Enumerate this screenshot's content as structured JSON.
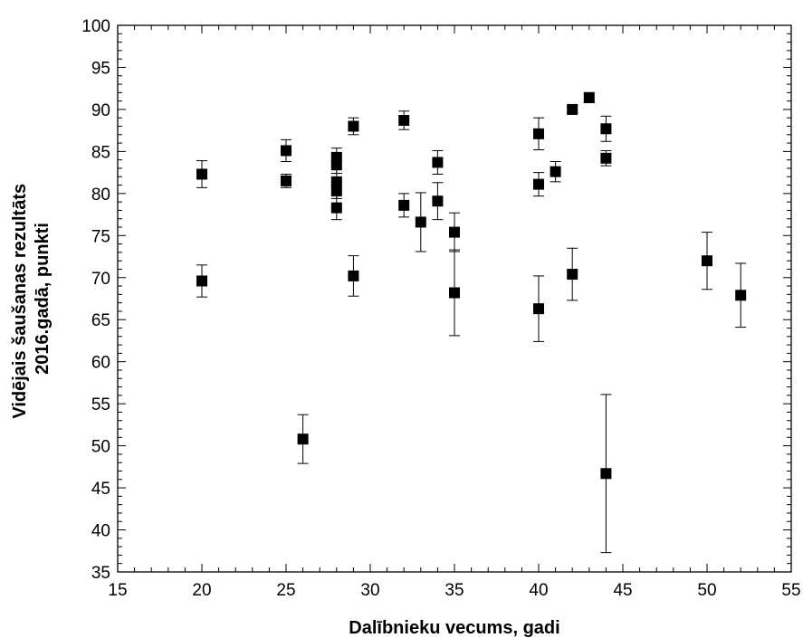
{
  "chart_data": {
    "type": "scatter",
    "xlabel": "Dalībnieku vecums, gadi",
    "ylabel_lines": [
      "Vidējais šaušanas rezultāts",
      "2016.gadā, punkti"
    ],
    "xlim": [
      15,
      55
    ],
    "ylim": [
      35,
      100
    ],
    "x_ticks": [
      15,
      20,
      25,
      30,
      35,
      40,
      45,
      50,
      55
    ],
    "y_ticks": [
      35,
      40,
      45,
      50,
      55,
      60,
      65,
      70,
      75,
      80,
      85,
      90,
      95,
      100
    ],
    "x_minor_step": 1,
    "y_minor_step": 1,
    "grid": false,
    "legend": "none",
    "marker": "square",
    "marker_color": "#000000",
    "points": [
      {
        "x": 20,
        "y": 82.3,
        "err": 1.6
      },
      {
        "x": 20,
        "y": 69.6,
        "err": 1.9
      },
      {
        "x": 25,
        "y": 85.1,
        "err": 1.3
      },
      {
        "x": 25,
        "y": 81.5,
        "err": 0.8
      },
      {
        "x": 26,
        "y": 50.8,
        "err": 2.9
      },
      {
        "x": 28,
        "y": 84.3,
        "err": 1.1
      },
      {
        "x": 28,
        "y": 83.4,
        "err": 1.0
      },
      {
        "x": 28,
        "y": 81.4,
        "err": 1.0
      },
      {
        "x": 28,
        "y": 80.4,
        "err": 1.0
      },
      {
        "x": 28,
        "y": 78.3,
        "err": 1.4
      },
      {
        "x": 29,
        "y": 88.0,
        "err": 1.0
      },
      {
        "x": 29,
        "y": 70.2,
        "err": 2.4
      },
      {
        "x": 32,
        "y": 88.7,
        "err": 1.1
      },
      {
        "x": 32,
        "y": 78.6,
        "err": 1.4
      },
      {
        "x": 33,
        "y": 76.6,
        "err": 3.5
      },
      {
        "x": 34,
        "y": 83.7,
        "err": 1.4
      },
      {
        "x": 34,
        "y": 79.1,
        "err": 2.2
      },
      {
        "x": 35,
        "y": 75.4,
        "err": 2.3
      },
      {
        "x": 35,
        "y": 68.2,
        "err": 5.1
      },
      {
        "x": 40,
        "y": 87.1,
        "err": 1.9
      },
      {
        "x": 40,
        "y": 81.1,
        "err": 1.4
      },
      {
        "x": 40,
        "y": 66.3,
        "err": 3.9
      },
      {
        "x": 41,
        "y": 82.6,
        "err": 1.2
      },
      {
        "x": 42,
        "y": 90.0,
        "err": 0.4
      },
      {
        "x": 42,
        "y": 70.4,
        "err": 3.1
      },
      {
        "x": 43,
        "y": 91.4,
        "err": 0.6
      },
      {
        "x": 44,
        "y": 87.7,
        "err": 1.5
      },
      {
        "x": 44,
        "y": 84.2,
        "err": 0.9
      },
      {
        "x": 44,
        "y": 46.7,
        "err": 9.4
      },
      {
        "x": 50,
        "y": 72.0,
        "err": 3.4
      },
      {
        "x": 52,
        "y": 67.9,
        "err": 3.8
      }
    ]
  }
}
